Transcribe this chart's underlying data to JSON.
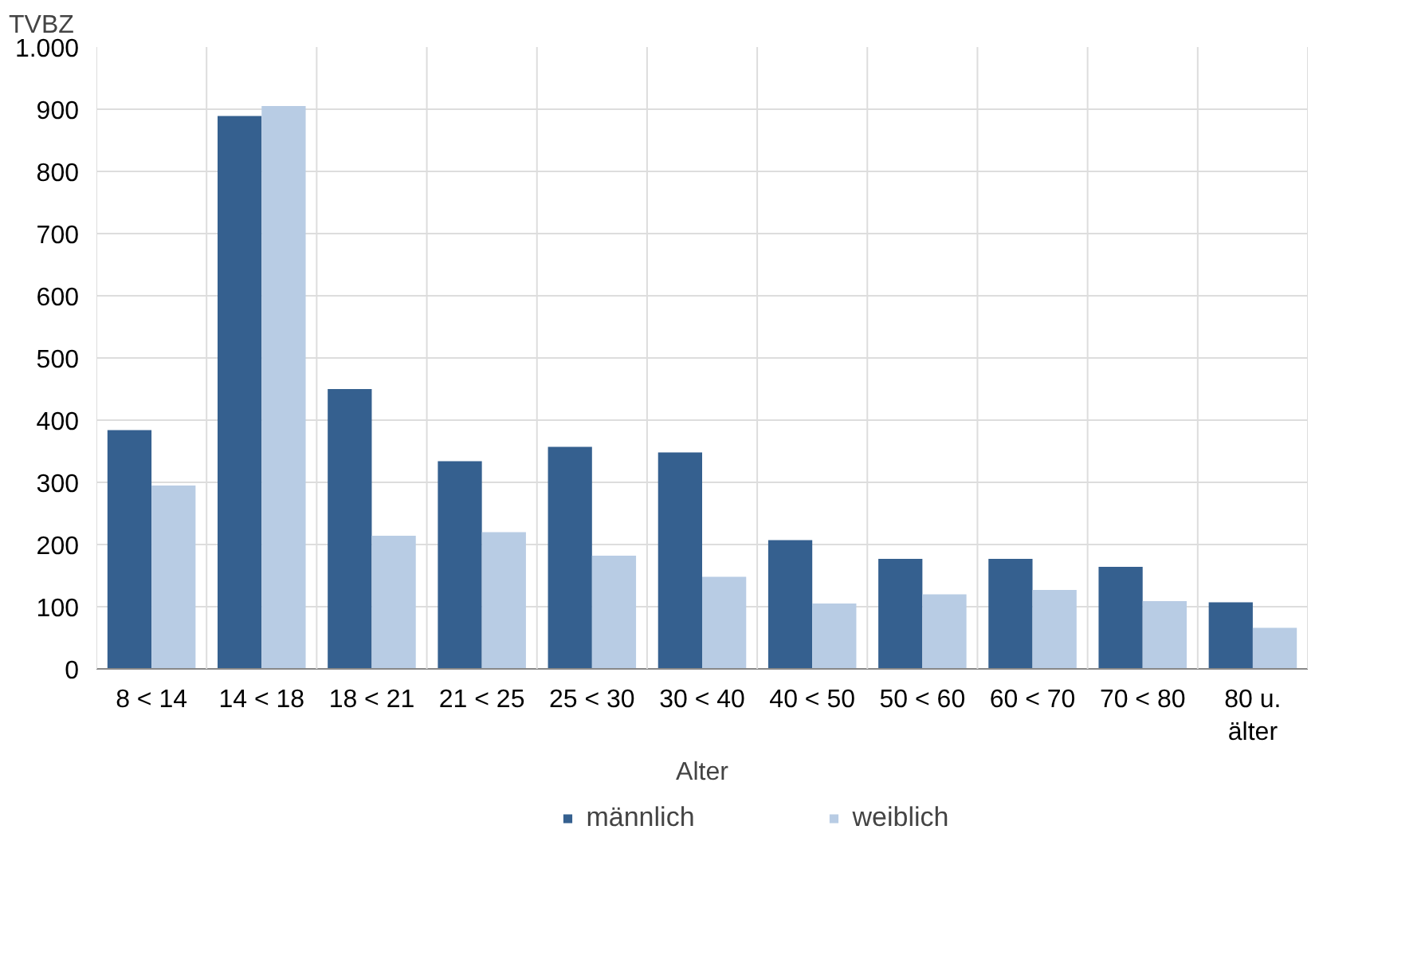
{
  "chart_data": {
    "type": "bar",
    "xlabel": "Alter",
    "ylabel": "TVBZ",
    "categories": [
      "8 < 14",
      "14 < 18",
      "18 < 21",
      "21 < 25",
      "25 < 30",
      "30 < 40",
      "40 < 50",
      "50 < 60",
      "60 < 70",
      "70 < 80",
      "80 u.\nälter"
    ],
    "series": [
      {
        "name": "männlich",
        "color": "#35608f",
        "values": [
          384,
          889,
          450,
          334,
          357,
          348,
          207,
          177,
          177,
          164,
          107
        ]
      },
      {
        "name": "weiblich",
        "color": "#b8cce4",
        "values": [
          295,
          905,
          214,
          220,
          182,
          148,
          105,
          120,
          127,
          109,
          66
        ]
      }
    ],
    "ylim": [
      0,
      1000
    ],
    "yticks": [
      0,
      100,
      200,
      300,
      400,
      500,
      600,
      700,
      800,
      900,
      {
        "value": 1000,
        "label": "1.000"
      }
    ],
    "grid": true,
    "legend": "bottom"
  }
}
